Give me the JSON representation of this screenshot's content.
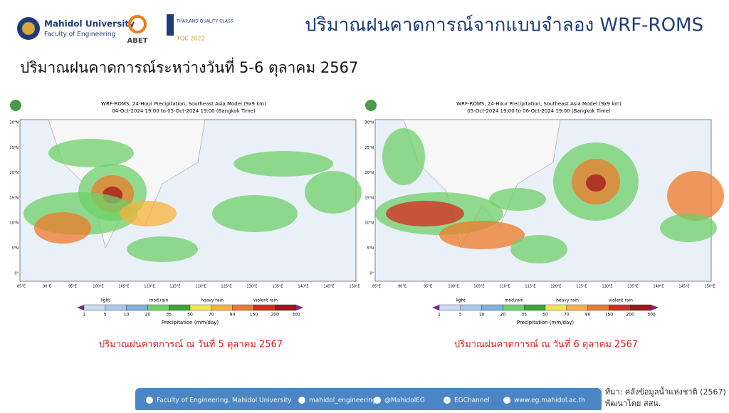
{
  "header": {
    "university": "Mahidol University",
    "faculty": "Faculty of Engineering",
    "abet": "ABET",
    "tqc_line1": "THAILAND QUALITY CLASS",
    "tqc_line2": "TQC 2022",
    "title": "ปริมาณฝนคาดการณ์จากแบบจำลอง WRF-ROMS"
  },
  "subtitle": "ปริมาณฝนคาดการณ์ระหว่างวันที่ 5-6 ตุลาคม 2567",
  "maps": [
    {
      "title": "WRF-ROMS, 24-Hour Precipitation, Southeast Asia Model (9x9 km)",
      "period": "04-Oct-2024 19:00 to 05-Oct-2024 19:00 (Bangkok Time)",
      "caption": "ปริมาณฝนคาดการณ์ ณ วันที่ 5 ตุลาคม 2567"
    },
    {
      "title": "WRF-ROMS, 24-Hour Precipitation, Southeast Asia Model (9x9 km)",
      "period": "05-Oct-2024 19:00 to 06-Oct-2024 19:00 (Bangkok Time)",
      "caption": "ปริมาณฝนคาดการณ์ ณ วันที่ 6 ตุลาคม 2567"
    }
  ],
  "lat_labels": [
    "30°N",
    "25°N",
    "20°N",
    "15°N",
    "10°N",
    "5°N",
    "0°"
  ],
  "lon_labels": [
    "85°E",
    "90°E",
    "95°E",
    "100°E",
    "105°E",
    "110°E",
    "115°E",
    "120°E",
    "125°E",
    "130°E",
    "135°E",
    "140°E",
    "145°E",
    "150°E"
  ],
  "colorbar": {
    "classes": [
      "light",
      "mod.rain",
      "heavy rain",
      "violent rain"
    ],
    "ticks": [
      "1",
      "5",
      "10",
      "20",
      "35",
      "50",
      "70",
      "90",
      "150",
      "200",
      "300"
    ],
    "label": "Precipitation (mm/day)"
  },
  "footer": {
    "items": [
      "Faculty of Engineering, Mahidol University",
      "mahidol_engineering",
      "@MahidolEG",
      "EGChannel",
      "www.eg.mahidol.ac.th"
    ],
    "source": "ที่มา: คลังข้อมูลน้ำแห่งชาติ (2567)",
    "credit": "พัฒนาโดย สสน."
  }
}
